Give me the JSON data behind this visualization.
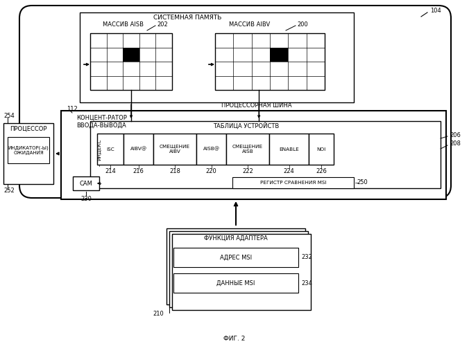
{
  "title": "ФИГ. 2",
  "bg_color": "#ffffff",
  "line_color": "#000000",
  "fig_label": "104",
  "sys_mem_label": "СИСТЕМНАЯ ПАМЯТЬ",
  "proc_bus_label": "ПРОЦЕССОРНАЯ ШИНА",
  "aisb_label": "МАССИВ AISB",
  "aibv_label": "МАССИВ AIBV",
  "aisb_num": "202",
  "aibv_num": "200",
  "concentrator_label": "КОНЦЕНТ-РАТОР\nВВОДА-ВЫВОДА",
  "conc_num": "112",
  "device_table_label": "ТАБЛИЦА УСТРОЙСТВ",
  "cells": [
    "ISC",
    "AIBV@",
    "СМЕЩЕНИЕ\nAIBV",
    "AISB@",
    "СМЕЩЕНИЕ\nAISB",
    "ENABLE",
    "NOI"
  ],
  "cell_nums": [
    "214",
    "216",
    "218",
    "220",
    "222",
    "224",
    "226"
  ],
  "msi_reg_label": "РЕГИСТР СРАВНЕНИЯ MSI",
  "msi_reg_num": "250",
  "cam_label": "CAM",
  "cam_num": "230",
  "index_label": "ИНДЕКС",
  "adapter_label": "ФУНКЦИЯ АДАПТЕРА",
  "adapter_num": "210",
  "msi_addr_label": "АДРЕС MSI",
  "msi_addr_num": "232",
  "msi_data_label": "ДАННЫЕ MSI",
  "msi_data_num": "234",
  "proc_label": "ПРОЦЕССОР",
  "proc_num": "254",
  "indicator_label": "ИНДИКАТОР(-Ы)\nОЖИДАНИЯ",
  "indicator_num": "252",
  "row206_num": "206",
  "row208_num": "208"
}
